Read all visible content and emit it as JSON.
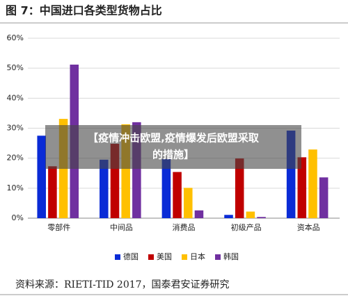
{
  "chart_data": {
    "type": "bar",
    "title": "图 7：中国进口各类型货物占比",
    "categories": [
      "零部件",
      "中间品",
      "消费品",
      "初级产品",
      "资本品"
    ],
    "series": [
      {
        "name": "德国",
        "color": "#0a2bd6",
        "values": [
          27.5,
          19.5,
          19.7,
          1.1,
          29.2
        ]
      },
      {
        "name": "美国",
        "color": "#c00000",
        "values": [
          17.3,
          24.8,
          15.4,
          19.9,
          20.3
        ]
      },
      {
        "name": "日本",
        "color": "#ffc000",
        "values": [
          33.1,
          31.3,
          10.1,
          2.2,
          22.9
        ]
      },
      {
        "name": "韩国",
        "color": "#7030a0",
        "values": [
          51.2,
          32.0,
          2.6,
          0.4,
          13.6
        ]
      }
    ],
    "ylim": [
      0,
      60
    ],
    "yticks": [
      {
        "value": 0,
        "label": "0%"
      },
      {
        "value": 10,
        "label": "10%"
      },
      {
        "value": 20,
        "label": "20%"
      },
      {
        "value": 30,
        "label": "30%"
      },
      {
        "value": 40,
        "label": "40%"
      },
      {
        "value": 50,
        "label": "50%"
      },
      {
        "value": 60,
        "label": "60%"
      }
    ],
    "grid": true,
    "legend": "bottom",
    "source": "资料来源：RIETI-TID 2017，国泰君安证券研究",
    "overlay": [
      "【疫情冲击欧盟,疫情爆发后欧盟采取",
      "的措施】"
    ]
  }
}
